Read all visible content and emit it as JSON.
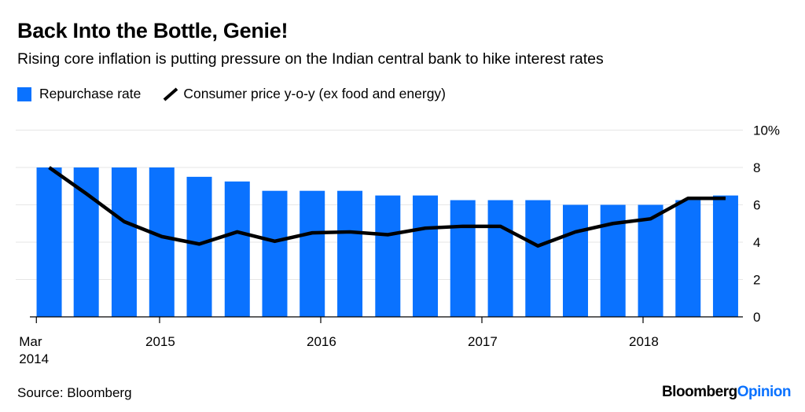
{
  "header": {
    "title": "Back Into the Bottle, Genie!",
    "subtitle": "Rising core inflation is putting pressure on the Indian central bank to hike interest rates"
  },
  "footer": {
    "source": "Source: Bloomberg",
    "logo_text": "Bloomberg",
    "logo_accent": "Opinion"
  },
  "chart_data": {
    "type": "bar+line",
    "title": "Back Into the Bottle, Genie!",
    "legend_position": "top-left",
    "grid": true,
    "colors": {
      "bar": "#0a72ff",
      "line": "#000000",
      "grid": "#e6e6e6"
    },
    "x": [
      "2014-04-26",
      "2014-07-19",
      "2014-10-13",
      "2015-01-06",
      "2015-04-01",
      "2015-06-26",
      "2015-09-19",
      "2015-12-13",
      "2016-03-07",
      "2016-06-01",
      "2016-08-25",
      "2016-11-18",
      "2017-02-12",
      "2017-05-08",
      "2017-08-01",
      "2017-10-25",
      "2018-01-18",
      "2018-04-13",
      "2018-07-07"
    ],
    "x_ticks": [
      {
        "date": "2014-03-28",
        "label": "Mar",
        "label2": "2014"
      },
      {
        "date": "2015-01-01",
        "label": "2015"
      },
      {
        "date": "2016-01-01",
        "label": "2016"
      },
      {
        "date": "2017-01-01",
        "label": "2017"
      },
      {
        "date": "2018-01-01",
        "label": "2018"
      }
    ],
    "ylim": [
      0,
      10
    ],
    "y_ticks": [
      {
        "value": 0,
        "label": "0"
      },
      {
        "value": 2,
        "label": "2"
      },
      {
        "value": 4,
        "label": "4"
      },
      {
        "value": 6,
        "label": "6"
      },
      {
        "value": 8,
        "label": "8"
      },
      {
        "value": 10,
        "label": "10%"
      }
    ],
    "y_axis_side": "right",
    "series": [
      {
        "name": "Repurchase rate",
        "type": "bar",
        "values": [
          8,
          8,
          8,
          8,
          7.5,
          7.25,
          6.75,
          6.75,
          6.75,
          6.5,
          6.5,
          6.25,
          6.25,
          6.25,
          6,
          6,
          6,
          6.25,
          6.5
        ]
      },
      {
        "name": "Consumer price y-o-y (ex food and energy)",
        "type": "line",
        "values": [
          8.0,
          6.6,
          5.1,
          4.3,
          3.9,
          4.55,
          4.05,
          4.5,
          4.55,
          4.4,
          4.75,
          4.85,
          4.85,
          3.8,
          4.55,
          5.0,
          5.25,
          6.35,
          6.35
        ]
      }
    ]
  }
}
